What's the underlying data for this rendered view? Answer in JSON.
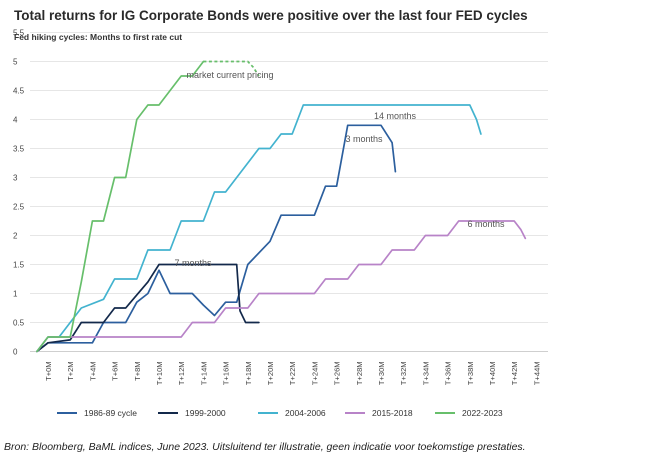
{
  "title": "Total returns for IG Corporate Bonds were positive over the last four FED cycles",
  "subtitle": "Fed hiking cycles: Months to first rate cut",
  "caption": "Bron: Bloomberg, BaML indices, June 2023. Uitsluitend ter illustratie, geen indicatie voor toekomstige prestaties.",
  "chart_data": {
    "type": "line",
    "title": "Total returns for IG Corporate Bonds were positive over the last four FED cycles",
    "subtitle": "Fed hiking cycles: Months to first rate cut",
    "xlabel": "",
    "ylabel": "",
    "x_ticks": [
      "T+0M",
      "T+2M",
      "T+4M",
      "T+6M",
      "T+8M",
      "T+10M",
      "T+12M",
      "T+14M",
      "T+16M",
      "T+18M",
      "T+20M",
      "T+22M",
      "T+24M",
      "T+26M",
      "T+28M",
      "T+30M",
      "T+32M",
      "T+34M",
      "T+36M",
      "T+38M",
      "T+40M",
      "T+42M",
      "T+44M"
    ],
    "y_ticks": [
      "0",
      "0.5",
      "1",
      "1.5",
      "2",
      "2.5",
      "3",
      "3.5",
      "4",
      "4.5",
      "5",
      "5.5"
    ],
    "xlim": [
      0,
      44
    ],
    "ylim": [
      0,
      5.5
    ],
    "grid": "horizontal",
    "legend_position": "bottom",
    "series": [
      {
        "name": "1986-89 cycle",
        "color": "#2c5f9e",
        "points": [
          [
            -1,
            0
          ],
          [
            0,
            0.15
          ],
          [
            4,
            0.15
          ],
          [
            5,
            0.5
          ],
          [
            7,
            0.5
          ],
          [
            8,
            0.85
          ],
          [
            9,
            1
          ],
          [
            10,
            1.4
          ],
          [
            11,
            1
          ],
          [
            13,
            1
          ],
          [
            14,
            0.8
          ],
          [
            15,
            0.62
          ],
          [
            16,
            0.85
          ],
          [
            17,
            0.85
          ],
          [
            18,
            1.5
          ],
          [
            20,
            1.9
          ],
          [
            21,
            2.35
          ],
          [
            24,
            2.35
          ],
          [
            25,
            2.85
          ],
          [
            26,
            2.85
          ],
          [
            27,
            3.9
          ],
          [
            30,
            3.9
          ],
          [
            31,
            3.6
          ],
          [
            31.3,
            3.1
          ]
        ]
      },
      {
        "name": "1999-2000",
        "color": "#13294b",
        "points": [
          [
            -1,
            0
          ],
          [
            0,
            0.15
          ],
          [
            2,
            0.2
          ],
          [
            3,
            0.5
          ],
          [
            5,
            0.5
          ],
          [
            6,
            0.75
          ],
          [
            7,
            0.75
          ],
          [
            9,
            1.2
          ],
          [
            10,
            1.5
          ],
          [
            11,
            1.5
          ],
          [
            16,
            1.5
          ],
          [
            17,
            1.5
          ],
          [
            17.3,
            0.7
          ],
          [
            17.8,
            0.5
          ],
          [
            19,
            0.5
          ]
        ]
      },
      {
        "name": "2004-2006",
        "color": "#43b3cf",
        "points": [
          [
            -1,
            0
          ],
          [
            0,
            0.25
          ],
          [
            1,
            0.25
          ],
          [
            2,
            0.5
          ],
          [
            3,
            0.75
          ],
          [
            5,
            0.9
          ],
          [
            6,
            1.25
          ],
          [
            8,
            1.25
          ],
          [
            9,
            1.75
          ],
          [
            11,
            1.75
          ],
          [
            12,
            2.25
          ],
          [
            14,
            2.25
          ],
          [
            15,
            2.75
          ],
          [
            16,
            2.75
          ],
          [
            17,
            3
          ],
          [
            19,
            3.5
          ],
          [
            20,
            3.5
          ],
          [
            21,
            3.75
          ],
          [
            22,
            3.75
          ],
          [
            23,
            4.25
          ],
          [
            28,
            4.25
          ],
          [
            38,
            4.25
          ],
          [
            38.6,
            4
          ],
          [
            39,
            3.75
          ]
        ]
      },
      {
        "name": "2015-2018",
        "color": "#b883c8",
        "points": [
          [
            -1,
            0
          ],
          [
            0,
            0.25
          ],
          [
            12,
            0.25
          ],
          [
            13,
            0.5
          ],
          [
            15,
            0.5
          ],
          [
            16,
            0.75
          ],
          [
            18,
            0.75
          ],
          [
            19,
            1
          ],
          [
            24,
            1
          ],
          [
            25,
            1.25
          ],
          [
            27,
            1.25
          ],
          [
            28,
            1.5
          ],
          [
            30,
            1.5
          ],
          [
            31,
            1.75
          ],
          [
            33,
            1.75
          ],
          [
            34,
            2
          ],
          [
            36,
            2
          ],
          [
            37,
            2.25
          ],
          [
            42,
            2.25
          ],
          [
            42.6,
            2.1
          ],
          [
            43,
            1.95
          ]
        ]
      },
      {
        "name": "2022-2023",
        "color": "#67bf6b",
        "points": [
          [
            -1,
            0
          ],
          [
            0,
            0.25
          ],
          [
            2,
            0.25
          ],
          [
            3,
            1.2
          ],
          [
            4,
            2.25
          ],
          [
            5,
            2.25
          ],
          [
            6,
            3
          ],
          [
            7,
            3
          ],
          [
            8,
            4
          ],
          [
            9,
            4.25
          ],
          [
            10,
            4.25
          ],
          [
            12,
            4.75
          ],
          [
            13,
            4.75
          ],
          [
            14,
            5
          ]
        ],
        "projection_label": "market current pricing",
        "projection": [
          [
            14,
            5
          ],
          [
            18,
            5
          ],
          [
            18.5,
            4.9
          ],
          [
            19,
            4.75
          ]
        ]
      }
    ],
    "annotations": [
      "market current pricing",
      "14 months",
      "3 months",
      "7 months",
      "6 months"
    ]
  }
}
